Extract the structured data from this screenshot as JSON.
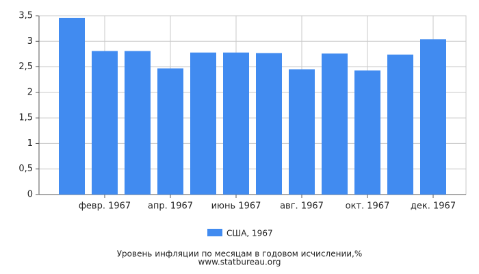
{
  "chart_data": {
    "type": "bar",
    "categories": [
      null,
      "февр. 1967",
      null,
      "апр. 1967",
      null,
      "июнь 1967",
      null,
      "авг. 1967",
      null,
      "окт. 1967",
      null,
      "дек. 1967"
    ],
    "series": [
      {
        "name": "США, 1967",
        "color": "#418bf0",
        "values": [
          3.46,
          2.81,
          2.81,
          2.47,
          2.78,
          2.78,
          2.77,
          2.45,
          2.76,
          2.43,
          2.74,
          3.04
        ]
      }
    ],
    "ylim": [
      0,
      3.5
    ],
    "yticks": [
      0,
      {
        "value": 0.5,
        "label": "0,5"
      },
      1,
      {
        "value": 1.5,
        "label": "1,5"
      },
      2,
      {
        "value": 2.5,
        "label": "2,5"
      },
      3,
      {
        "value": 3.5,
        "label": "3,5"
      }
    ],
    "grid": true,
    "title": "Уровень инфляции по месяцам в годовом исчислении,%",
    "source": "www.statbureau.org"
  }
}
